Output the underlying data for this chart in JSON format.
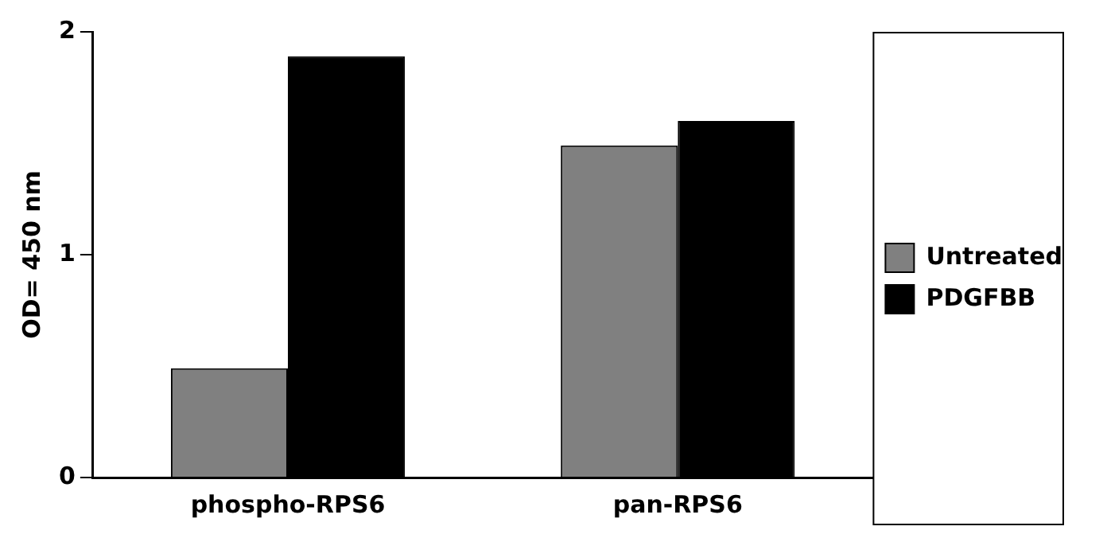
{
  "chart_data": {
    "type": "bar",
    "ylabel": "OD= 450 nm",
    "categories": [
      "phospho-RPS6",
      "pan-RPS6"
    ],
    "series": [
      {
        "name": "Untreated",
        "color": "#808080",
        "values": [
          0.49,
          1.49
        ]
      },
      {
        "name": "PDGFBB",
        "color": "#000000",
        "values": [
          1.89,
          1.6
        ]
      }
    ],
    "ylim": [
      0,
      2
    ],
    "yticks": [
      0,
      1,
      2
    ],
    "grid": false,
    "legend": "right"
  }
}
